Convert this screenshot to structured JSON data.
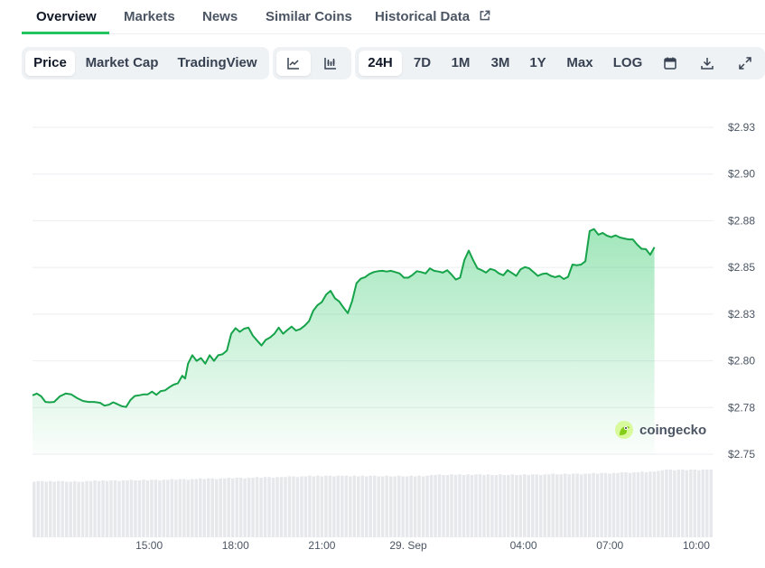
{
  "tabs": [
    {
      "label": "Overview",
      "active": true
    },
    {
      "label": "Markets"
    },
    {
      "label": "News"
    },
    {
      "label": "Similar Coins"
    },
    {
      "label": "Historical Data",
      "external": true
    }
  ],
  "toolbar": {
    "metrics": [
      {
        "label": "Price",
        "active": true
      },
      {
        "label": "Market Cap"
      },
      {
        "label": "TradingView"
      }
    ],
    "chart_types": [
      {
        "icon": "line-chart-icon",
        "active": true
      },
      {
        "icon": "candlestick-chart-icon"
      }
    ],
    "ranges": [
      {
        "label": "24H",
        "active": true
      },
      {
        "label": "7D"
      },
      {
        "label": "1M"
      },
      {
        "label": "3M"
      },
      {
        "label": "1Y"
      },
      {
        "label": "Max"
      },
      {
        "label": "LOG"
      }
    ],
    "tools": [
      {
        "icon": "calendar-icon"
      },
      {
        "icon": "download-icon"
      },
      {
        "icon": "fullscreen-icon"
      }
    ]
  },
  "watermark": "coingecko",
  "colors": {
    "accent": "#22c55e",
    "line": "#16a34a",
    "fill": "#22c55e"
  },
  "chart_data": {
    "type": "area",
    "xlabel": "",
    "ylabel": "",
    "x_ticks": [
      "15:00",
      "18:00",
      "21:00",
      "29. Sep",
      "04:00",
      "07:00",
      "10:00"
    ],
    "x_tick_hours": [
      3,
      6,
      9,
      12,
      16,
      19,
      22
    ],
    "x_range_hours": [
      -1.05,
      22.6
    ],
    "y_ticks": [
      "$2.75",
      "$2.78",
      "$2.80",
      "$2.83",
      "$2.85",
      "$2.88",
      "$2.90",
      "$2.93"
    ],
    "y_tick_values": [
      2.75,
      2.775,
      2.8,
      2.825,
      2.85,
      2.875,
      2.9,
      2.925
    ],
    "ylim": [
      2.75,
      2.925
    ],
    "grid": true,
    "legend": "none",
    "series": [
      {
        "points": [
          [
            -1.05,
            2.7815
          ],
          [
            -0.9,
            2.7825
          ],
          [
            -0.75,
            2.781
          ],
          [
            -0.6,
            2.778
          ],
          [
            -0.45,
            2.7778
          ],
          [
            -0.3,
            2.778
          ],
          [
            -0.1,
            2.781
          ],
          [
            0.1,
            2.7825
          ],
          [
            0.3,
            2.782
          ],
          [
            0.5,
            2.78
          ],
          [
            0.7,
            2.7785
          ],
          [
            0.9,
            2.778
          ],
          [
            1.1,
            2.778
          ],
          [
            1.3,
            2.7775
          ],
          [
            1.45,
            2.776
          ],
          [
            1.6,
            2.7765
          ],
          [
            1.75,
            2.7778
          ],
          [
            1.9,
            2.7768
          ],
          [
            2.05,
            2.7757
          ],
          [
            2.2,
            2.7753
          ],
          [
            2.35,
            2.779
          ],
          [
            2.5,
            2.7812
          ],
          [
            2.65,
            2.7815
          ],
          [
            2.8,
            2.782
          ],
          [
            2.95,
            2.782
          ],
          [
            3.1,
            2.7835
          ],
          [
            3.25,
            2.7818
          ],
          [
            3.4,
            2.7838
          ],
          [
            3.55,
            2.7842
          ],
          [
            3.7,
            2.7858
          ],
          [
            3.85,
            2.7872
          ],
          [
            4.0,
            2.788
          ],
          [
            4.15,
            2.792
          ],
          [
            4.25,
            2.7905
          ],
          [
            4.35,
            2.7985
          ],
          [
            4.5,
            2.803
          ],
          [
            4.65,
            2.8
          ],
          [
            4.8,
            2.8015
          ],
          [
            4.95,
            2.7985
          ],
          [
            5.1,
            2.803
          ],
          [
            5.25,
            2.8
          ],
          [
            5.4,
            2.803
          ],
          [
            5.55,
            2.8035
          ],
          [
            5.7,
            2.8055
          ],
          [
            5.85,
            2.8145
          ],
          [
            6.0,
            2.8175
          ],
          [
            6.15,
            2.8155
          ],
          [
            6.3,
            2.8172
          ],
          [
            6.45,
            2.8178
          ],
          [
            6.6,
            2.8135
          ],
          [
            6.75,
            2.8108
          ],
          [
            6.9,
            2.8082
          ],
          [
            7.05,
            2.8112
          ],
          [
            7.2,
            2.8125
          ],
          [
            7.35,
            2.8145
          ],
          [
            7.5,
            2.8178
          ],
          [
            7.65,
            2.8145
          ],
          [
            7.8,
            2.8165
          ],
          [
            7.95,
            2.8183
          ],
          [
            8.1,
            2.8162
          ],
          [
            8.25,
            2.817
          ],
          [
            8.4,
            2.8188
          ],
          [
            8.55,
            2.8212
          ],
          [
            8.7,
            2.8268
          ],
          [
            8.85,
            2.8298
          ],
          [
            9.0,
            2.8315
          ],
          [
            9.15,
            2.8355
          ],
          [
            9.3,
            2.8375
          ],
          [
            9.45,
            2.8335
          ],
          [
            9.6,
            2.8318
          ],
          [
            9.75,
            2.8285
          ],
          [
            9.9,
            2.8255
          ],
          [
            10.05,
            2.832
          ],
          [
            10.2,
            2.8415
          ],
          [
            10.35,
            2.844
          ],
          [
            10.5,
            2.8448
          ],
          [
            10.65,
            2.8465
          ],
          [
            10.8,
            2.8475
          ],
          [
            10.95,
            2.848
          ],
          [
            11.1,
            2.8482
          ],
          [
            11.25,
            2.8478
          ],
          [
            11.4,
            2.8482
          ],
          [
            11.55,
            2.8475
          ],
          [
            11.7,
            2.8468
          ],
          [
            11.85,
            2.8445
          ],
          [
            12.0,
            2.8445
          ],
          [
            12.15,
            2.846
          ],
          [
            12.3,
            2.848
          ],
          [
            12.45,
            2.8475
          ],
          [
            12.6,
            2.8468
          ],
          [
            12.75,
            2.8495
          ],
          [
            12.9,
            2.8482
          ],
          [
            13.05,
            2.8478
          ],
          [
            13.2,
            2.8472
          ],
          [
            13.35,
            2.8485
          ],
          [
            13.5,
            2.8462
          ],
          [
            13.65,
            2.8435
          ],
          [
            13.8,
            2.8445
          ],
          [
            13.95,
            2.854
          ],
          [
            14.1,
            2.859
          ],
          [
            14.25,
            2.854
          ],
          [
            14.4,
            2.8495
          ],
          [
            14.55,
            2.8485
          ],
          [
            14.7,
            2.8472
          ],
          [
            14.85,
            2.8492
          ],
          [
            15.0,
            2.8485
          ],
          [
            15.15,
            2.8468
          ],
          [
            15.3,
            2.8458
          ],
          [
            15.45,
            2.8485
          ],
          [
            15.6,
            2.847
          ],
          [
            15.75,
            2.8455
          ],
          [
            15.9,
            2.849
          ],
          [
            16.05,
            2.8502
          ],
          [
            16.2,
            2.8495
          ],
          [
            16.35,
            2.8475
          ],
          [
            16.5,
            2.8455
          ],
          [
            16.65,
            2.8465
          ],
          [
            16.8,
            2.8468
          ],
          [
            16.95,
            2.8455
          ],
          [
            17.1,
            2.8448
          ],
          [
            17.25,
            2.8455
          ],
          [
            17.4,
            2.8438
          ],
          [
            17.55,
            2.845
          ],
          [
            17.7,
            2.8515
          ],
          [
            17.85,
            2.8512
          ],
          [
            18.0,
            2.8515
          ],
          [
            18.15,
            2.8533
          ],
          [
            18.3,
            2.8695
          ],
          [
            18.45,
            2.8705
          ],
          [
            18.6,
            2.8675
          ],
          [
            18.75,
            2.8685
          ],
          [
            18.9,
            2.867
          ],
          [
            19.05,
            2.8662
          ],
          [
            19.2,
            2.8672
          ],
          [
            19.35,
            2.866
          ],
          [
            19.5,
            2.8655
          ],
          [
            19.65,
            2.865
          ],
          [
            19.8,
            2.865
          ],
          [
            19.95,
            2.8622
          ],
          [
            20.1,
            2.86
          ],
          [
            20.25,
            2.8598
          ],
          [
            20.4,
            2.8568
          ],
          [
            20.55,
            2.8608
          ]
        ]
      }
    ],
    "volume_series": [
      0.82,
      0.83,
      0.83,
      0.82,
      0.83,
      0.82,
      0.83,
      0.83,
      0.82,
      0.82,
      0.83,
      0.82,
      0.82,
      0.83,
      0.83,
      0.84,
      0.83,
      0.84,
      0.83,
      0.84,
      0.84,
      0.83,
      0.84,
      0.84,
      0.85,
      0.84,
      0.84,
      0.85,
      0.84,
      0.85,
      0.85,
      0.84,
      0.85,
      0.85,
      0.86,
      0.85,
      0.86,
      0.86,
      0.85,
      0.86,
      0.86,
      0.87,
      0.86,
      0.87,
      0.87,
      0.86,
      0.87,
      0.87,
      0.88,
      0.87,
      0.88,
      0.88,
      0.87,
      0.88,
      0.88,
      0.89,
      0.88,
      0.89,
      0.89,
      0.88,
      0.89,
      0.89,
      0.89,
      0.9,
      0.9,
      0.89,
      0.9,
      0.9,
      0.91,
      0.9,
      0.91,
      0.9,
      0.91,
      0.91,
      0.9,
      0.91,
      0.91,
      0.91,
      0.9,
      0.91,
      0.9,
      0.91,
      0.9,
      0.91,
      0.91,
      0.9,
      0.9,
      0.91,
      0.9,
      0.9,
      0.91,
      0.9,
      0.9,
      0.91,
      0.9,
      0.91,
      0.9,
      0.91,
      0.92,
      0.92,
      0.93,
      0.92,
      0.92,
      0.93,
      0.92,
      0.93,
      0.92,
      0.93,
      0.92,
      0.93,
      0.93,
      0.92,
      0.93,
      0.92,
      0.92,
      0.93,
      0.92,
      0.92,
      0.93,
      0.92,
      0.92,
      0.93,
      0.92,
      0.93,
      0.93,
      0.92,
      0.93,
      0.93,
      0.94,
      0.93,
      0.93,
      0.94,
      0.93,
      0.94,
      0.94,
      0.93,
      0.94,
      0.94,
      0.95,
      0.94,
      0.95,
      0.95,
      0.94,
      0.95,
      0.95,
      0.96,
      0.96,
      0.95,
      0.96,
      0.96,
      0.97,
      0.96,
      0.97,
      0.97,
      0.98,
      0.99,
      1.0,
      1.0,
      0.99,
      1.0,
      1.0,
      0.99,
      1.0,
      1.0,
      0.99,
      1.0,
      1.0,
      1.0
    ]
  }
}
